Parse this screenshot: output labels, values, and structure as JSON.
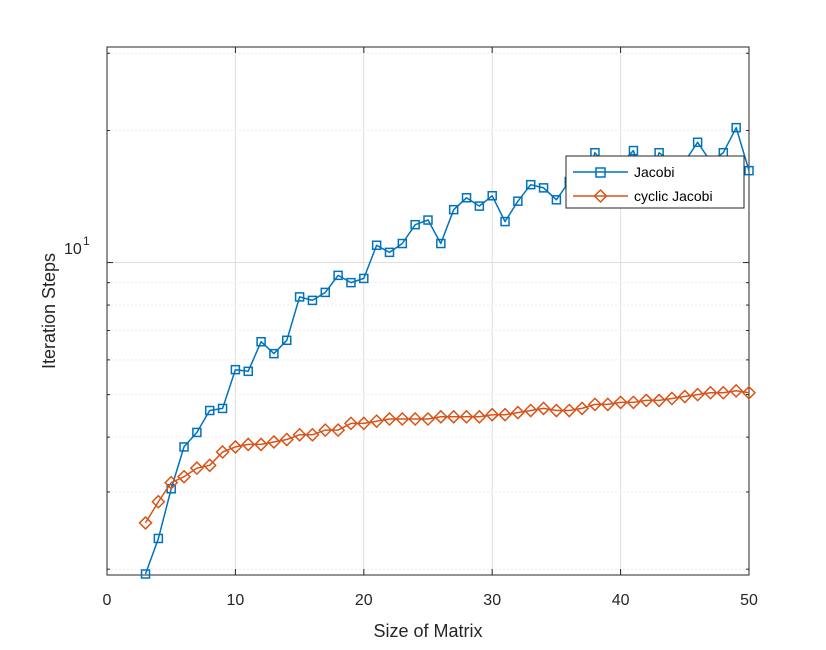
{
  "chart_data": {
    "type": "line",
    "xlabel": "Size of Matrix",
    "ylabel": "Iteration Steps",
    "xlim": [
      0,
      50
    ],
    "ylim": [
      1.94,
      31
    ],
    "yscale": "log",
    "grid": true,
    "legend_position": "upper-right",
    "xticks": [
      {
        "value": 0,
        "label": "0"
      },
      {
        "value": 10,
        "label": "10"
      },
      {
        "value": 20,
        "label": "20"
      },
      {
        "value": 30,
        "label": "30"
      },
      {
        "value": 40,
        "label": "40"
      },
      {
        "value": 50,
        "label": "50"
      }
    ],
    "yticks": [
      {
        "value": 10,
        "base": "10",
        "exp": "1"
      }
    ],
    "x": [
      3,
      4,
      5,
      6,
      7,
      8,
      9,
      10,
      11,
      12,
      13,
      14,
      15,
      16,
      17,
      18,
      19,
      20,
      21,
      22,
      23,
      24,
      25,
      26,
      27,
      28,
      29,
      30,
      31,
      32,
      33,
      34,
      35,
      36,
      37,
      38,
      39,
      40,
      41,
      42,
      43,
      44,
      45,
      46,
      47,
      48,
      49,
      50
    ],
    "series": [
      {
        "name": "Jacobi",
        "color": "#0072BD",
        "marker": "square",
        "values": [
          1.95,
          2.35,
          3.05,
          3.8,
          4.1,
          4.6,
          4.65,
          5.7,
          5.65,
          6.6,
          6.2,
          6.65,
          8.35,
          8.2,
          8.55,
          9.35,
          9.0,
          9.2,
          10.95,
          10.55,
          11.05,
          12.2,
          12.5,
          11.05,
          13.2,
          14.05,
          13.45,
          14.2,
          12.4,
          13.8,
          15.05,
          14.8,
          13.9,
          15.3,
          14.1,
          17.8,
          16.4,
          16.8,
          18.0,
          14.5,
          17.8,
          16.9,
          17.0,
          18.8,
          17.0,
          17.8,
          20.3,
          16.2
        ]
      },
      {
        "name": "cyclic Jacobi",
        "color": "#D95319",
        "marker": "diamond",
        "values": [
          2.55,
          2.85,
          3.15,
          3.25,
          3.4,
          3.45,
          3.7,
          3.8,
          3.85,
          3.85,
          3.9,
          3.95,
          4.05,
          4.05,
          4.15,
          4.15,
          4.3,
          4.3,
          4.35,
          4.4,
          4.4,
          4.4,
          4.4,
          4.45,
          4.45,
          4.45,
          4.45,
          4.5,
          4.5,
          4.55,
          4.6,
          4.65,
          4.6,
          4.6,
          4.65,
          4.75,
          4.75,
          4.8,
          4.8,
          4.85,
          4.85,
          4.9,
          4.95,
          5.0,
          5.05,
          5.05,
          5.1,
          5.05
        ]
      }
    ]
  }
}
